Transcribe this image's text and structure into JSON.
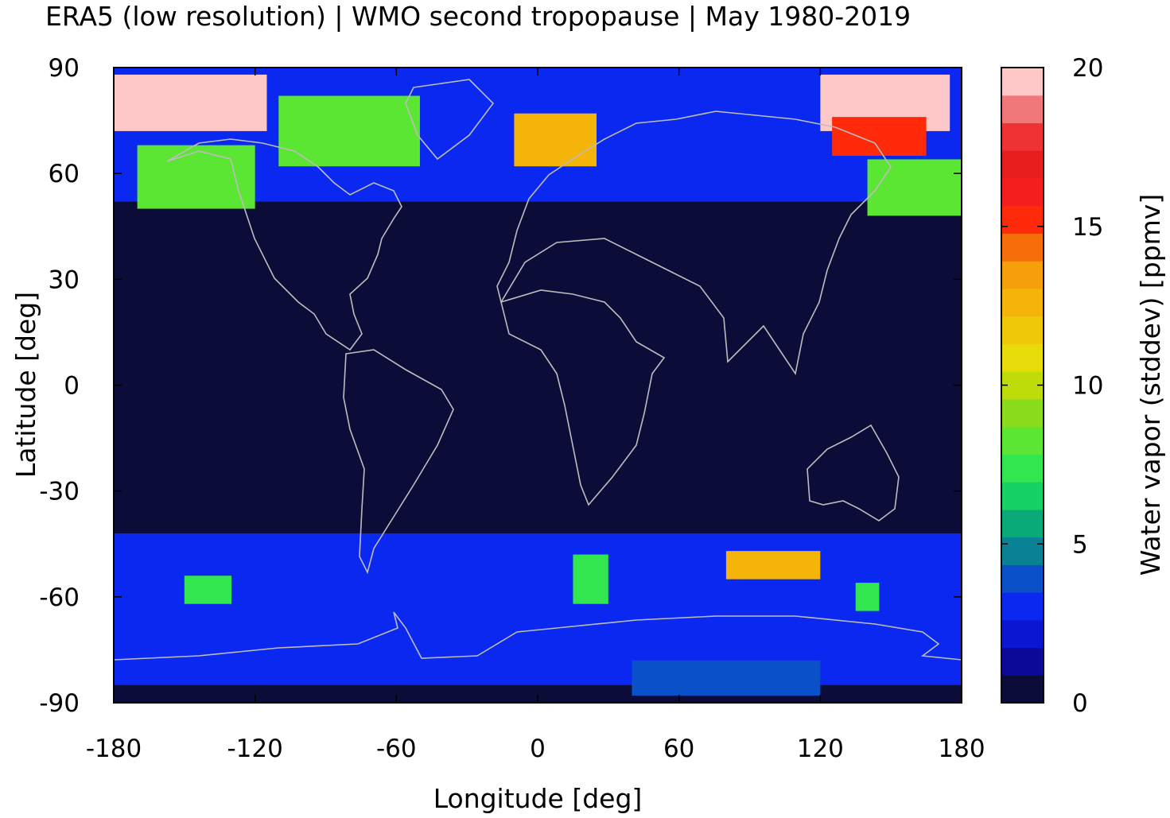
{
  "chart_data": {
    "type": "heatmap",
    "title": "ERA5 (low resolution) | WMO second tropopause | May 1980-2019",
    "xlabel": "Longitude [deg]",
    "ylabel": "Latitude [deg]",
    "xlim": [
      -180,
      180
    ],
    "ylim": [
      -90,
      90
    ],
    "x_ticks": [
      "-180",
      "-120",
      "-60",
      "0",
      "60",
      "120",
      "180"
    ],
    "y_ticks": [
      "90",
      "60",
      "30",
      "0",
      "-30",
      "-60",
      "-90"
    ],
    "x_tick_values": [
      -180,
      -120,
      -60,
      0,
      60,
      120,
      180
    ],
    "y_tick_values": [
      90,
      60,
      30,
      0,
      -30,
      -60,
      -90
    ],
    "colorbar": {
      "label": "Water vapor (stddev) [ppmv]",
      "range": [
        0,
        20
      ],
      "ticks": [
        "0",
        "5",
        "10",
        "15",
        "20"
      ],
      "tick_values": [
        0,
        5,
        10,
        15,
        20
      ],
      "colors": [
        "#0c0c38",
        "#0a0a96",
        "#0a16d2",
        "#0a28f0",
        "#0a50c8",
        "#0a8296",
        "#0aaa78",
        "#14d264",
        "#32e650",
        "#5ae632",
        "#8cdc1e",
        "#bedc0a",
        "#e6dc0a",
        "#f0c80a",
        "#f5b40a",
        "#f5a00a",
        "#f56e0a",
        "#ff2a0a",
        "#f51e1e",
        "#e61e1e",
        "#ef3232",
        "#f07878",
        "#ffc8c8"
      ]
    },
    "background_value_ppmv": 0.5,
    "features": [
      {
        "lon": [
          -180,
          180
        ],
        "lat": [
          52,
          90
        ],
        "value": 3
      },
      {
        "lon": [
          -180,
          180
        ],
        "lat": [
          -85,
          -42
        ],
        "value": 3
      },
      {
        "lon": [
          -180,
          -115
        ],
        "lat": [
          72,
          88
        ],
        "value": 20
      },
      {
        "lon": [
          120,
          175
        ],
        "lat": [
          72,
          88
        ],
        "value": 20
      },
      {
        "lon": [
          125,
          165
        ],
        "lat": [
          65,
          76
        ],
        "value": 15
      },
      {
        "lon": [
          -10,
          25
        ],
        "lat": [
          62,
          77
        ],
        "value": 13
      },
      {
        "lon": [
          80,
          120
        ],
        "lat": [
          -55,
          -47
        ],
        "value": 13
      },
      {
        "lon": [
          -170,
          -120
        ],
        "lat": [
          50,
          68
        ],
        "value": 8
      },
      {
        "lon": [
          140,
          180
        ],
        "lat": [
          48,
          64
        ],
        "value": 8
      },
      {
        "lon": [
          -110,
          -50
        ],
        "lat": [
          62,
          82
        ],
        "value": 8
      },
      {
        "lon": [
          -150,
          -130
        ],
        "lat": [
          -62,
          -54
        ],
        "value": 7
      },
      {
        "lon": [
          15,
          30
        ],
        "lat": [
          -62,
          -48
        ],
        "value": 7
      },
      {
        "lon": [
          135,
          145
        ],
        "lat": [
          -64,
          -56
        ],
        "value": 7
      },
      {
        "lon": [
          40,
          120
        ],
        "lat": [
          -88,
          -78
        ],
        "value": 4
      }
    ]
  }
}
